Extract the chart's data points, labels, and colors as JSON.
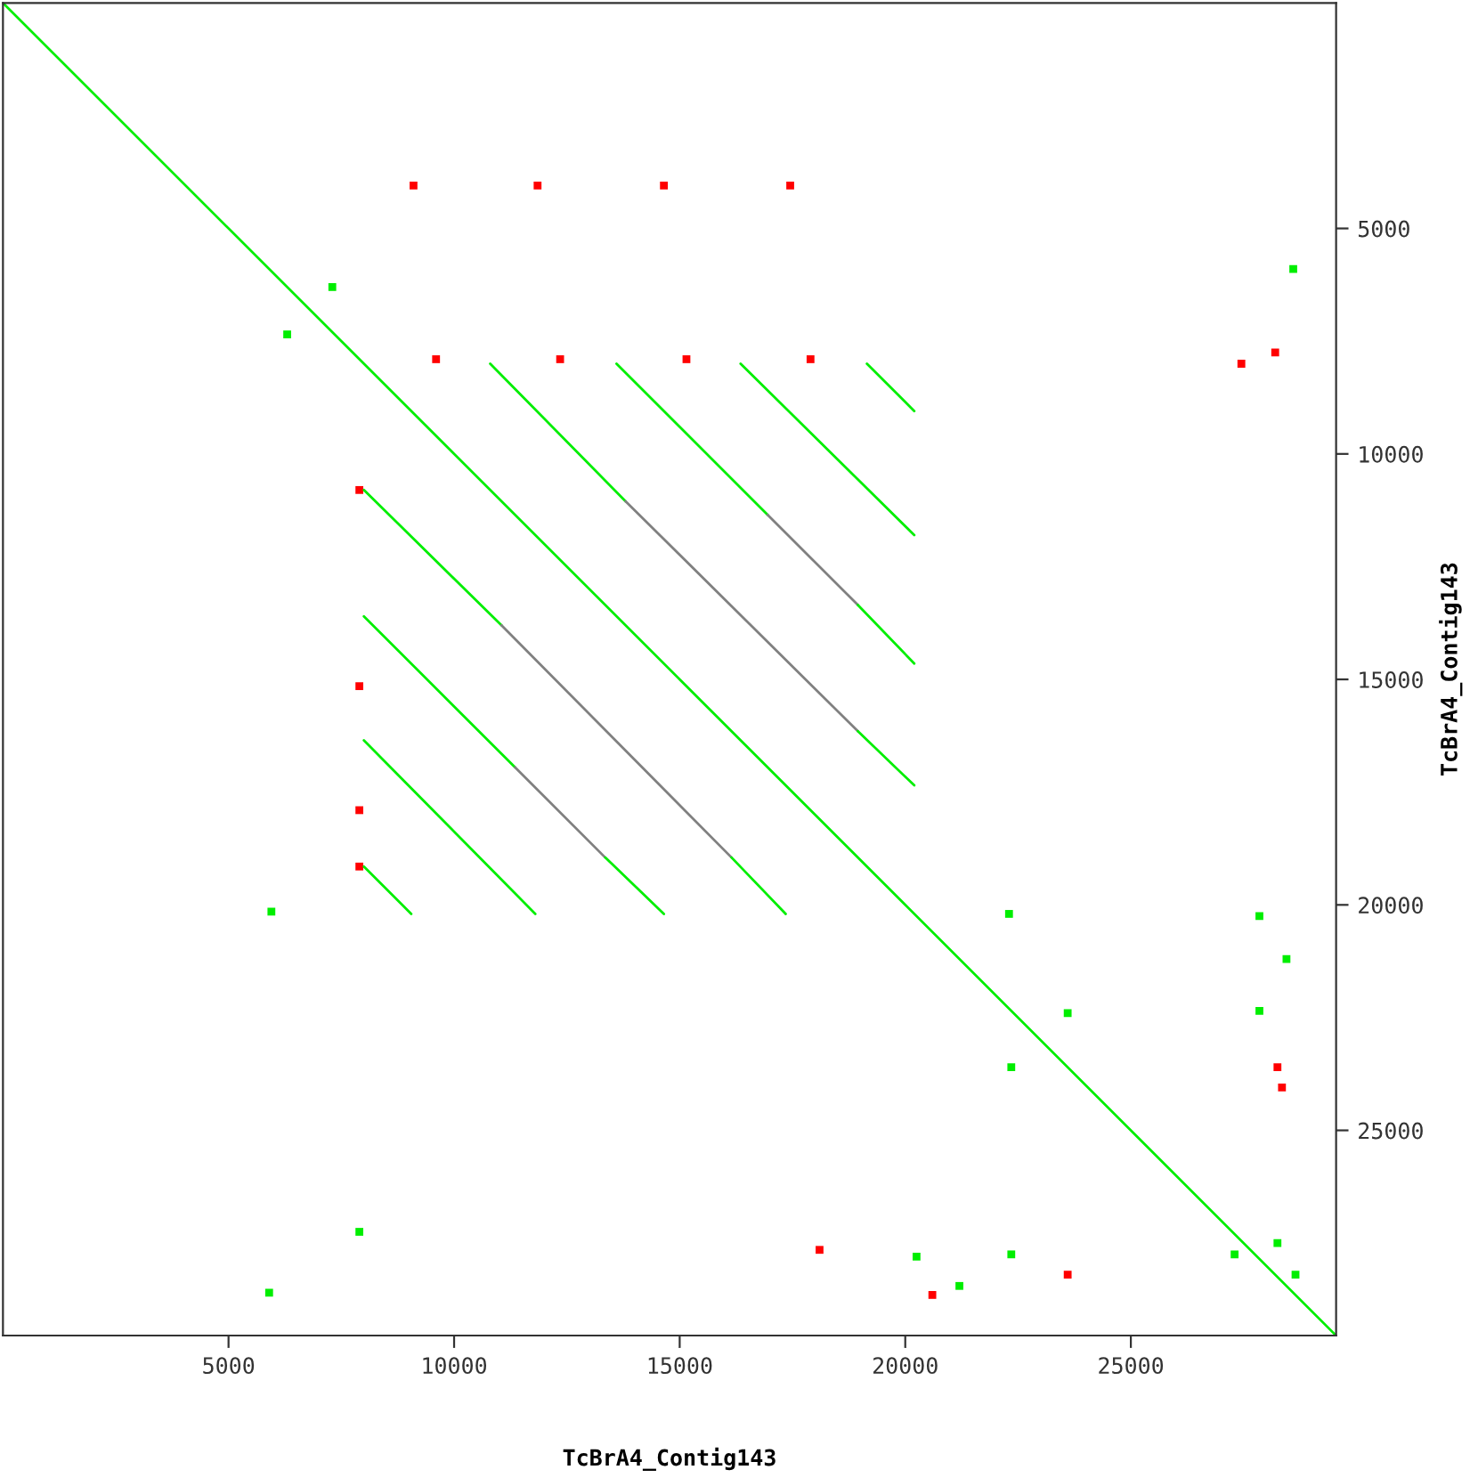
{
  "chart_data": {
    "type": "line",
    "xlabel": "TcBrA4_Contig143",
    "ylabel": "TcBrA4_Contig143",
    "xlim": [
      0,
      29550
    ],
    "ylim": [
      29550,
      0
    ],
    "xticks": [
      5000,
      10000,
      15000,
      20000,
      25000
    ],
    "yticks": [
      5000,
      10000,
      15000,
      20000,
      25000
    ],
    "grid": false,
    "legend": false,
    "series": [
      {
        "color": "#00ee00",
        "x": [
          0,
          29550
        ],
        "values": [
          0,
          29550
        ]
      },
      {
        "color": "#00ee00",
        "x": [
          10800,
          13800
        ],
        "values": [
          8000,
          11050
        ]
      },
      {
        "color": "#808080",
        "x": [
          13800,
          18950
        ],
        "values": [
          11050,
          16150
        ]
      },
      {
        "color": "#00ee00",
        "x": [
          18950,
          20200
        ],
        "values": [
          16150,
          17350
        ]
      },
      {
        "color": "#00ee00",
        "x": [
          13600,
          16950
        ],
        "values": [
          8000,
          11350
        ]
      },
      {
        "color": "#808080",
        "x": [
          16950,
          18950
        ],
        "values": [
          11350,
          13350
        ]
      },
      {
        "color": "#00ee00",
        "x": [
          18950,
          20200
        ],
        "values": [
          13350,
          14650
        ]
      },
      {
        "color": "#00ee00",
        "x": [
          16350,
          20200
        ],
        "values": [
          8000,
          11800
        ]
      },
      {
        "color": "#00ee00",
        "x": [
          19150,
          20200
        ],
        "values": [
          8000,
          9050
        ]
      },
      {
        "color": "#00ee00",
        "x": [
          8000,
          11050
        ],
        "values": [
          10800,
          13800
        ]
      },
      {
        "color": "#808080",
        "x": [
          11050,
          16150
        ],
        "values": [
          13800,
          18950
        ]
      },
      {
        "color": "#00ee00",
        "x": [
          16150,
          17350
        ],
        "values": [
          18950,
          20200
        ]
      },
      {
        "color": "#00ee00",
        "x": [
          8000,
          11350
        ],
        "values": [
          13600,
          16950
        ]
      },
      {
        "color": "#808080",
        "x": [
          11350,
          13350
        ],
        "values": [
          16950,
          18950
        ]
      },
      {
        "color": "#00ee00",
        "x": [
          13350,
          14650
        ],
        "values": [
          18950,
          20200
        ]
      },
      {
        "color": "#00ee00",
        "x": [
          8000,
          11800
        ],
        "values": [
          16350,
          20200
        ]
      },
      {
        "color": "#00ee00",
        "x": [
          8000,
          9050
        ],
        "values": [
          19150,
          20200
        ]
      },
      {
        "type": "scatter",
        "color": "#ff0000",
        "x": [
          9100,
          11850,
          14650,
          17450,
          9600,
          12350,
          15150,
          17900,
          7900,
          7900,
          7900,
          7900,
          28250,
          28350,
          20600,
          23600,
          27450,
          28200,
          18100
        ],
        "values": [
          4050,
          4050,
          4050,
          4050,
          7900,
          7900,
          7900,
          7900,
          10800,
          15150,
          17900,
          19150,
          23600,
          24050,
          28650,
          28200,
          8000,
          7750,
          27650
        ]
      },
      {
        "type": "scatter",
        "color": "#00ee00",
        "x": [
          22300,
          27850,
          28450,
          23600,
          27850,
          22350,
          22350,
          20250,
          27300,
          28250,
          28650,
          21200,
          28600,
          5950,
          7900,
          5900,
          7300,
          6300
        ],
        "values": [
          20200,
          20250,
          21200,
          22400,
          22350,
          23600,
          27750,
          27800,
          27750,
          27500,
          28200,
          28450,
          5900,
          20150,
          27250,
          28600,
          6300,
          7350
        ]
      }
    ]
  }
}
